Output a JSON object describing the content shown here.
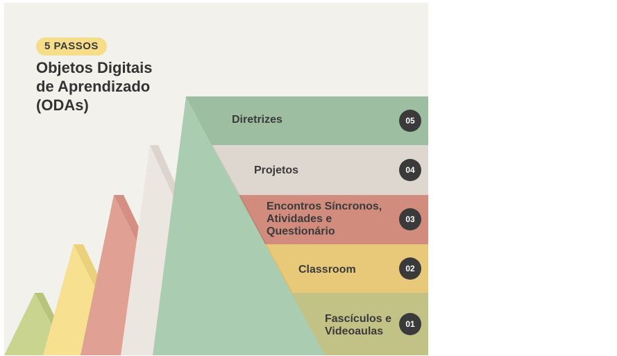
{
  "badge": {
    "text": "5 PASSOS",
    "color": "#f5dd89"
  },
  "title": {
    "lines": [
      "Objetos Digitais",
      "de Aprendizado",
      "(ODAs)"
    ]
  },
  "steps": [
    {
      "number": "05",
      "lines": [
        "Diretrizes"
      ],
      "color": "#9dbea0"
    },
    {
      "number": "04",
      "lines": [
        "Projetos"
      ],
      "color": "#ded7cf"
    },
    {
      "number": "03",
      "lines": [
        "Encontros Síncronos,",
        "Atividades e",
        "Questionário"
      ],
      "color": "#d18c7e"
    },
    {
      "number": "02",
      "lines": [
        "Classroom"
      ],
      "color": "#e8c97a"
    },
    {
      "number": "01",
      "lines": [
        "Fascículos e",
        "Videoaulas"
      ],
      "color": "#c2c287"
    }
  ],
  "colors": {
    "background": "#f2f1eb",
    "peak_green_light": "#c9d48e",
    "peak_yellow": "#f7e08f",
    "peak_red": "#e0a093",
    "peak_cream": "#ece6e0",
    "peak_green": "#aacdb1"
  }
}
